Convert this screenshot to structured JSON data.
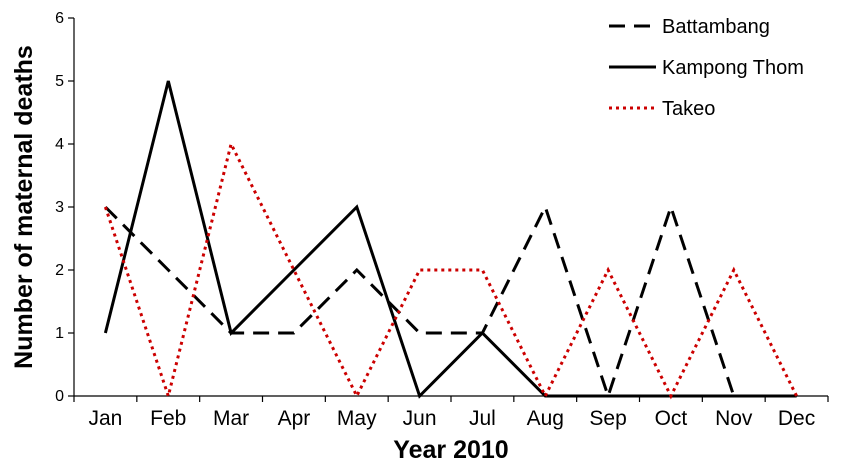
{
  "chart_data": {
    "type": "line",
    "title": "",
    "xlabel": "Year 2010",
    "ylabel": "Number of maternal deaths",
    "categories": [
      "Jan",
      "Feb",
      "Mar",
      "Apr",
      "May",
      "Jun",
      "Jul",
      "Aug",
      "Sep",
      "Oct",
      "Nov",
      "Dec"
    ],
    "ylim": [
      0,
      6
    ],
    "yticks": [
      "0",
      "1",
      "2",
      "3",
      "4",
      "5",
      "6"
    ],
    "grid": false,
    "legend_position": "top-right",
    "series": [
      {
        "name": "Battambang",
        "values": [
          3,
          2,
          1,
          1,
          2,
          1,
          1,
          3,
          0,
          3,
          0,
          0
        ],
        "color": "#000000",
        "style": "dashed"
      },
      {
        "name": "Kampong Thom",
        "values": [
          1,
          5,
          1,
          2,
          3,
          0,
          1,
          0,
          0,
          0,
          0,
          0
        ],
        "color": "#000000",
        "style": "solid"
      },
      {
        "name": "Takeo",
        "values": [
          3,
          0,
          4,
          2,
          0,
          2,
          2,
          0,
          2,
          0,
          2,
          0
        ],
        "color": "#cc0000",
        "style": "dotted"
      }
    ]
  }
}
